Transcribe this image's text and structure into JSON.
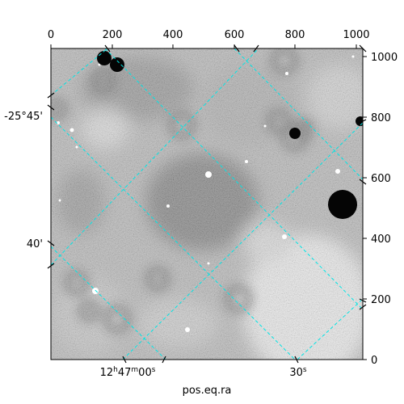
{
  "figure": {
    "xlabel": "pos.eq.ra",
    "top_ticks": [
      "0",
      "200",
      "400",
      "600",
      "800",
      "1000"
    ],
    "right_ticks": [
      "0",
      "200",
      "400",
      "600",
      "800",
      "1000"
    ],
    "ra_ticks": [
      {
        "h": "12",
        "hs": "h",
        "m": "47",
        "ms": "m",
        "s": "00",
        "ss": "s"
      },
      {
        "s": "30",
        "ss": "s"
      }
    ],
    "dec_ticks": [
      "-25°45'",
      "40'"
    ],
    "colors": {
      "grid": "#00e5e5",
      "frame": "#000000",
      "image_bg": "#7a7a7a"
    }
  },
  "chart_data": {
    "type": "heatmap",
    "title": "",
    "xlabel": "pos.eq.ra",
    "ylabel": "",
    "pixel_x_ticks": [
      0,
      200,
      400,
      600,
      800,
      1000
    ],
    "pixel_y_ticks": [
      0,
      200,
      400,
      600,
      800,
      1000
    ],
    "ra_tick_labels": [
      "12h47m00s",
      "30s"
    ],
    "dec_tick_labels": [
      "-25°45'",
      "40'"
    ],
    "grid": true,
    "colormap": "gray"
  }
}
